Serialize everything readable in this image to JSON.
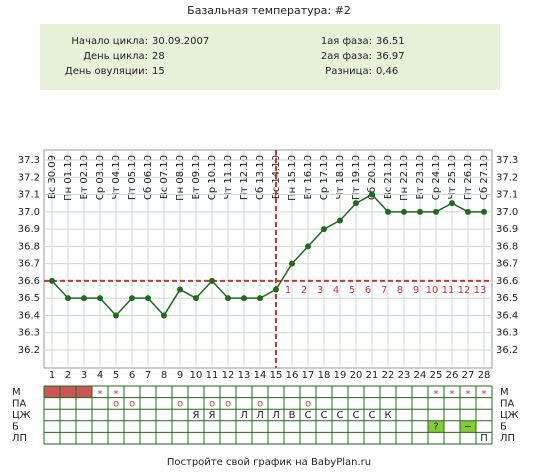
{
  "chart_data": {
    "type": "line",
    "title": "Базальная температура: #2",
    "info": [
      {
        "label": "Начало цикла:",
        "value": "30.09.2007"
      },
      {
        "label": "День цикла:",
        "value": "28"
      },
      {
        "label": "День овуляции:",
        "value": "15"
      },
      {
        "label": "1ая фаза:",
        "value": "36.51"
      },
      {
        "label": "2ая фаза:",
        "value": "36.97"
      },
      {
        "label": "Разница:",
        "value": "0,46"
      }
    ],
    "dates": [
      "Вс 30.09",
      "Пн 01.10",
      "Вт 02.10",
      "Ср 03.10",
      "Чт 04.10",
      "Пт 05.10",
      "Сб 06.10",
      "Вс 07.10",
      "Пн 08.10",
      "Вт 09.10",
      "Ср 10.10",
      "Чт 11.10",
      "Пт 12.10",
      "Сб 13.10",
      "Вс 14.10",
      "Пн 15.10",
      "Вт 16.10",
      "Ср 17.10",
      "Чт 18.10",
      "Пт 19.10",
      "Сб 20.10",
      "Вс 21.10",
      "Пн 22.10",
      "Вт 23.10",
      "Ср 24.10",
      "Чт 25.10",
      "Пт 26.10",
      "Сб 27.10"
    ],
    "x": [
      1,
      2,
      3,
      4,
      5,
      6,
      7,
      8,
      9,
      10,
      11,
      12,
      13,
      14,
      15,
      16,
      17,
      18,
      19,
      20,
      21,
      22,
      23,
      24,
      25,
      26,
      27,
      28
    ],
    "series": [
      {
        "name": "Температура",
        "color": "#1e6b1e",
        "values": [
          36.6,
          36.5,
          36.5,
          36.5,
          36.4,
          36.5,
          36.5,
          36.4,
          36.55,
          36.5,
          36.6,
          36.5,
          36.5,
          36.5,
          36.55,
          36.7,
          36.8,
          36.9,
          36.95,
          37.05,
          37.1,
          37.0,
          37.0,
          37.0,
          37.0,
          37.05,
          37.0,
          37.0
        ]
      }
    ],
    "xlim": [
      0.5,
      28.5
    ],
    "ylim": [
      36.2,
      37.3
    ],
    "yticks": [
      37.3,
      37.2,
      37.1,
      {
        "value": 37.0,
        "label": "37.0"
      },
      36.9,
      36.8,
      36.7,
      36.6,
      36.5,
      36.4,
      36.3,
      36.2
    ],
    "grid": true,
    "coverline": 36.6,
    "ovulation_day": 15,
    "marker_color": "#cc3333",
    "phase2_counts": [
      1,
      2,
      3,
      4,
      5,
      6,
      7,
      8,
      9,
      10,
      11,
      12,
      13
    ],
    "phase2_start_day": 16,
    "table": [
      {
        "label": "М",
        "cells": [
          {
            "day": 1,
            "fill": "#cc5555"
          },
          {
            "day": 2,
            "fill": "#cc5555"
          },
          {
            "day": 3,
            "fill": "#cc5555"
          },
          {
            "day": 4,
            "text": "*"
          },
          {
            "day": 5,
            "text": "*"
          },
          {
            "day": 25,
            "text": "*"
          },
          {
            "day": 26,
            "text": "*"
          },
          {
            "day": 27,
            "text": "*"
          },
          {
            "day": 28,
            "text": "*"
          }
        ]
      },
      {
        "label": "ПА",
        "cells": [
          {
            "day": 5,
            "text": "o"
          },
          {
            "day": 6,
            "text": "o"
          },
          {
            "day": 9,
            "text": "o"
          },
          {
            "day": 11,
            "text": "o"
          },
          {
            "day": 12,
            "text": "o"
          },
          {
            "day": 14,
            "text": "o"
          },
          {
            "day": 17,
            "text": "o"
          }
        ]
      },
      {
        "label": "ЦЖ",
        "cells": [
          {
            "day": 10,
            "text": "Я"
          },
          {
            "day": 11,
            "text": "Я"
          },
          {
            "day": 13,
            "text": "Л"
          },
          {
            "day": 14,
            "text": "Л"
          },
          {
            "day": 15,
            "text": "Л"
          },
          {
            "day": 16,
            "text": "В"
          },
          {
            "day": 17,
            "text": "С"
          },
          {
            "day": 18,
            "text": "С"
          },
          {
            "day": 19,
            "text": "С"
          },
          {
            "day": 20,
            "text": "С"
          },
          {
            "day": 21,
            "text": "С"
          },
          {
            "day": 22,
            "text": "К"
          }
        ]
      },
      {
        "label": "Б",
        "cells": [
          {
            "day": 25,
            "text": "?",
            "fill": "#88cc33"
          },
          {
            "day": 27,
            "text": "−",
            "fill": "#88cc33"
          }
        ]
      },
      {
        "label": "ЛП",
        "cells": [
          {
            "day": 28,
            "text": "П"
          }
        ]
      }
    ],
    "footer": "Постройте свой график на BabyPlan.ru"
  }
}
